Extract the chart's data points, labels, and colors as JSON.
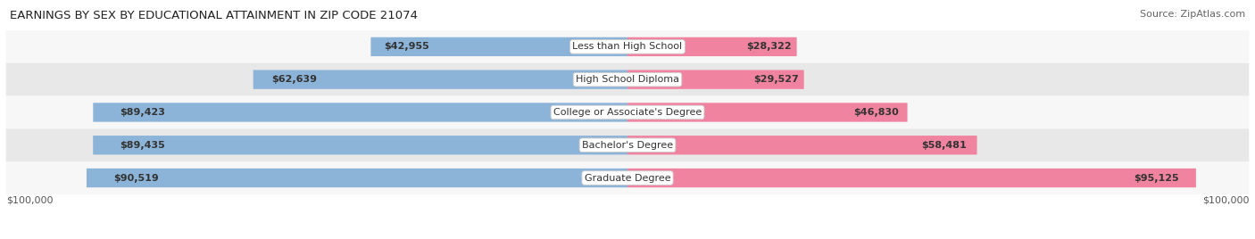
{
  "title": "EARNINGS BY SEX BY EDUCATIONAL ATTAINMENT IN ZIP CODE 21074",
  "source": "Source: ZipAtlas.com",
  "categories": [
    "Less than High School",
    "High School Diploma",
    "College or Associate's Degree",
    "Bachelor's Degree",
    "Graduate Degree"
  ],
  "male_values": [
    42955,
    62639,
    89423,
    89435,
    90519
  ],
  "female_values": [
    28322,
    29527,
    46830,
    58481,
    95125
  ],
  "max_value": 100000,
  "male_color": "#8cb4d8",
  "female_color": "#f084a0",
  "row_bg_light": "#f7f7f7",
  "row_bg_dark": "#e8e8e8",
  "title_fontsize": 9.5,
  "source_fontsize": 8,
  "label_fontsize": 8,
  "value_fontsize": 8,
  "tick_fontsize": 8,
  "axis_label_left": "$100,000",
  "axis_label_right": "$100,000"
}
